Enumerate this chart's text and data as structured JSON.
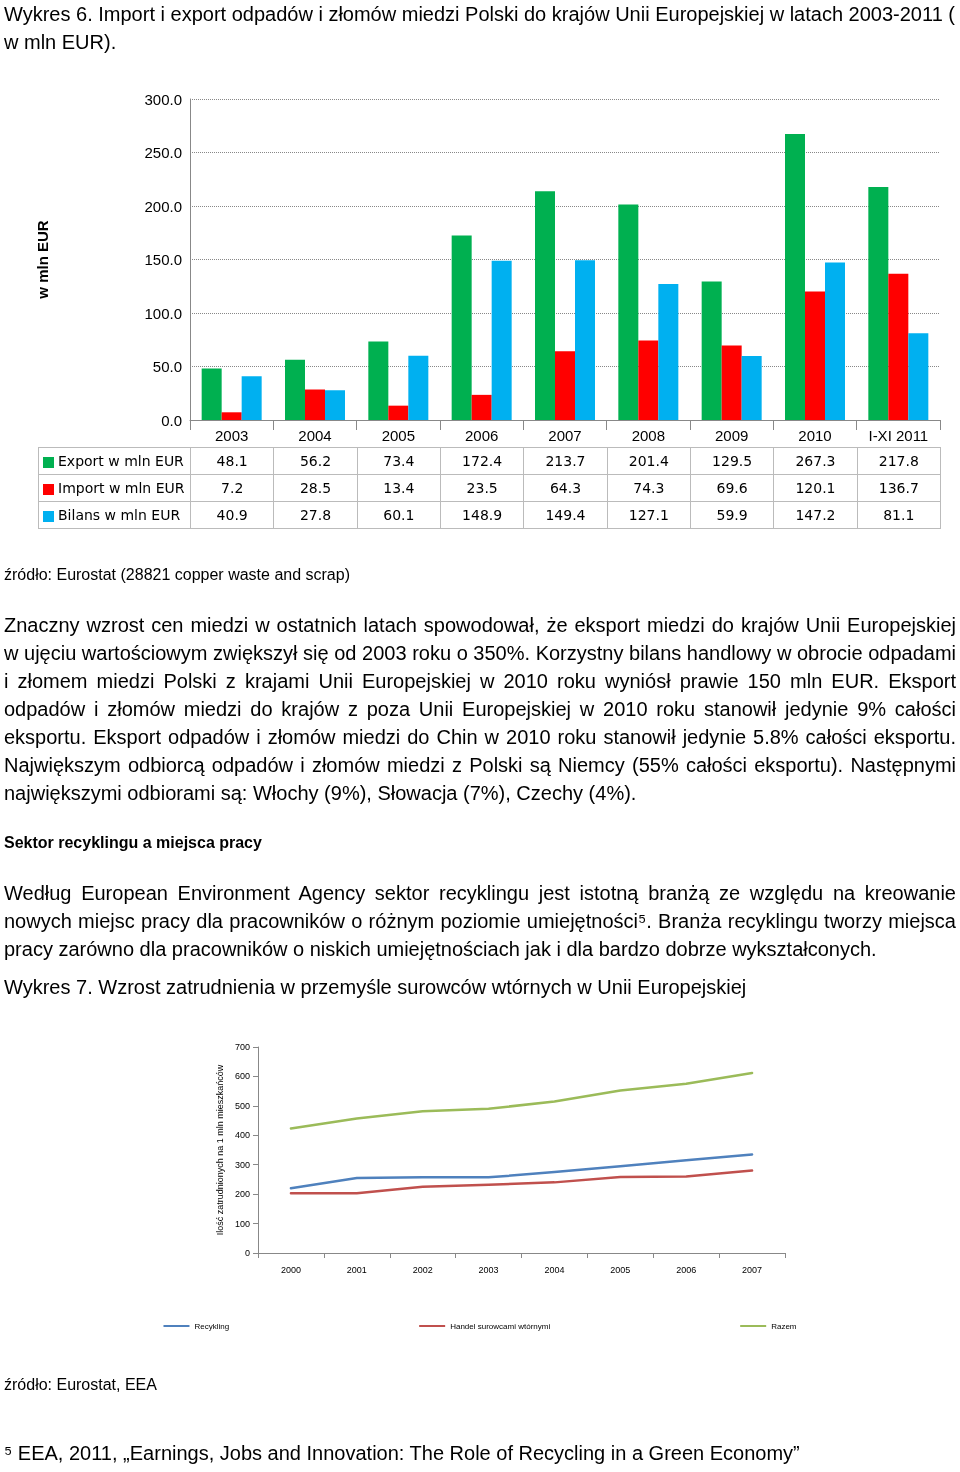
{
  "chart_data": [
    {
      "type": "bar",
      "title": "Wykres 6. Import i export odpadów i złomów miedzi Polski do krajów Unii Europejskiej w latach 2003-2011 ( w mln EUR).",
      "ylabel": "w mln EUR",
      "categories": [
        "2003",
        "2004",
        "2005",
        "2006",
        "2007",
        "2008",
        "2009",
        "2010",
        "I-XI 2011"
      ],
      "series": [
        {
          "name": "Export w mln EUR",
          "color": "#00b050",
          "values": [
            48.1,
            56.2,
            73.4,
            172.4,
            213.7,
            201.4,
            129.5,
            267.3,
            217.8
          ]
        },
        {
          "name": "Import w mln EUR",
          "color": "#ff0000",
          "values": [
            7.2,
            28.5,
            13.4,
            23.5,
            64.3,
            74.3,
            69.6,
            120.1,
            136.7
          ]
        },
        {
          "name": "Bilans w mln EUR",
          "color": "#00b0f0",
          "values": [
            40.9,
            27.8,
            60.1,
            148.9,
            149.4,
            127.1,
            59.9,
            147.2,
            81.1
          ]
        }
      ],
      "ylim": [
        0,
        300
      ],
      "yticks": [
        {
          "value": 0,
          "label": "0.0"
        },
        {
          "value": 50,
          "label": "50.0"
        },
        {
          "value": 100,
          "label": "100.0"
        },
        {
          "value": 150,
          "label": "150.0"
        },
        {
          "value": 200,
          "label": "200.0"
        },
        {
          "value": 250,
          "label": "250.0"
        },
        {
          "value": 300,
          "label": "300.0"
        }
      ],
      "grid": "y",
      "legend": "bottom",
      "data_labels": true,
      "annotations": [
        "źródło: Eurostat (28821 copper waste and scrap)",
        "Znaczny wzrost cen miedzi w ostatnich latach spowodował, że eksport miedzi do krajów Unii Europejskiej w ujęciu wartościowym zwiększył się od 2003 roku o 350%. Korzystny bilans handlowy w obrocie odpadami i złomem miedzi Polski z krajami Unii Europejskiej w 2010 roku wyniósł prawie 150 mln EUR. Eksport odpadów i złomów miedzi do krajów z poza Unii Europejskiej w 2010 roku stanowił jedynie 9% całości eksportu. Eksport odpadów i złomów miedzi do Chin w 2010 roku stanowił jedynie 5.8% całości eksportu. Największym odbiorcą odpadów i złomów miedzi z Polski są Niemcy (55% całości eksportu). Następnymi największymi odbiorami są: Włochy (9%), Słowacja (7%), Czechy (4%).",
        "Sektor recyklingu a miejsca pracy",
        "Według European Environment Agency sektor recyklingu jest istotną branżą ze względu na kreowanie nowych miejsc pracy dla pracowników o różnym poziomie umiejętności⁵. Branża recyklingu tworzy miejsca pracy zarówno dla pracowników o niskich umiejętnościach jak i dla bardzo dobrze wykształconych."
      ]
    },
    {
      "type": "line",
      "title": "Wykres 7. Wzrost zatrudnienia w przemyśle surowców wtórnych w Unii Europejskiej",
      "ylabel": "Ilość zatrudnionych na 1 mln mieszkańców",
      "categories": [
        "2000",
        "2001",
        "2002",
        "2003",
        "2004",
        "2005",
        "2006",
        "2007"
      ],
      "series": [
        {
          "name": "Recykling",
          "color": "#4f81bd",
          "values": [
            220,
            255,
            257,
            257,
            275,
            295,
            315,
            335
          ]
        },
        {
          "name": "Handel surowcami wtórnymi",
          "color": "#c0504d",
          "values": [
            203,
            203,
            225,
            232,
            240,
            258,
            260,
            280
          ]
        },
        {
          "name": "Razem",
          "color": "#9bbb59",
          "values": [
            423,
            457,
            482,
            490,
            515,
            552,
            575,
            612
          ]
        }
      ],
      "ylim": [
        0,
        700
      ],
      "yticks": [
        0,
        100,
        200,
        300,
        400,
        500,
        600,
        700
      ],
      "grid": false,
      "legend": "bottom",
      "marker": "none",
      "line_style": "solid",
      "annotations": [
        "źródło: Eurostat, EEA",
        "⁵ EEA, 2011, „Earnings, Jobs and Innovation: The Role of Recycling in a Green Economy”"
      ]
    }
  ]
}
